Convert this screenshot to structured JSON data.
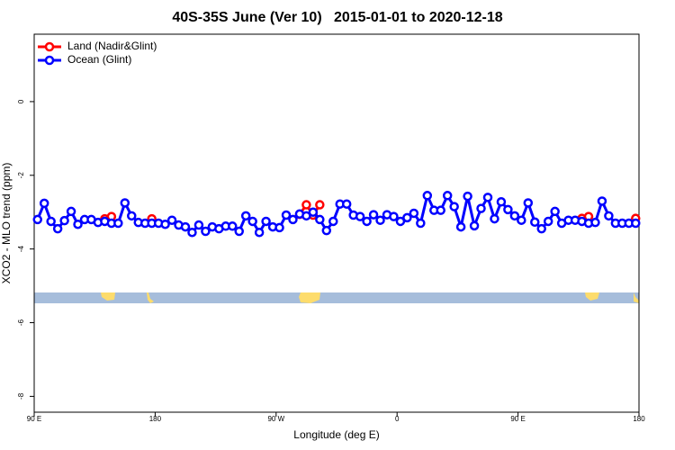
{
  "chart_data": {
    "type": "line",
    "title": "40S-35S June (Ver 10)   2015-01-01 to 2020-12-18",
    "x_label": "Longitude (deg E)",
    "y_label": "XCO2 - MLO trend (ppm)",
    "x": [
      92.5,
      97.5,
      102.5,
      107.5,
      112.5,
      117.5,
      122.5,
      127.5,
      132.5,
      137.5,
      142.5,
      147.5,
      152.5,
      157.5,
      162.5,
      167.5,
      172.5,
      177.5,
      182.5,
      187.5,
      192.5,
      197.5,
      202.5,
      207.5,
      212.5,
      217.5,
      222.5,
      227.5,
      232.5,
      237.5,
      242.5,
      247.5,
      252.5,
      257.5,
      262.5,
      267.5,
      272.5,
      277.5,
      282.5,
      287.5,
      292.5,
      297.5,
      302.5,
      307.5,
      312.5,
      317.5,
      322.5,
      327.5,
      332.5,
      337.5,
      342.5,
      347.5,
      352.5,
      357.5,
      362.5,
      367.5,
      372.5,
      377.5,
      382.5,
      387.5,
      392.5,
      397.5,
      402.5,
      407.5,
      412.5,
      417.5,
      422.5,
      427.5,
      432.5,
      437.5,
      442.5,
      447.5,
      452.5,
      457.5,
      462.5,
      467.5,
      472.5,
      477.5,
      482.5,
      487.5,
      492.5,
      497.5,
      502.5,
      507.5,
      512.5,
      517.5,
      522.5,
      527.5,
      532.5,
      537.5
    ],
    "series": [
      {
        "name": "Land (Nadir&Glint)",
        "color": "#ff0000",
        "values": [
          null,
          null,
          null,
          null,
          null,
          null,
          null,
          null,
          null,
          null,
          -3.18,
          -3.12,
          null,
          null,
          null,
          null,
          null,
          -3.18,
          null,
          null,
          null,
          null,
          null,
          null,
          null,
          null,
          null,
          null,
          null,
          null,
          null,
          null,
          null,
          null,
          null,
          null,
          null,
          null,
          null,
          -3.06,
          -2.8,
          -3.08,
          -2.8,
          null,
          null,
          null,
          null,
          null,
          null,
          null,
          null,
          null,
          null,
          null,
          null,
          null,
          null,
          null,
          null,
          null,
          null,
          null,
          null,
          null,
          null,
          null,
          null,
          null,
          null,
          null,
          null,
          null,
          null,
          null,
          null,
          null,
          null,
          null,
          null,
          null,
          null,
          -3.17,
          -3.12,
          null,
          null,
          null,
          null,
          null,
          null,
          -3.17
        ]
      },
      {
        "name": "Ocean (Glint)",
        "color": "#0000ff",
        "values": [
          -3.2,
          -2.76,
          -3.25,
          -3.45,
          -3.23,
          -2.98,
          -3.33,
          -3.2,
          -3.2,
          -3.28,
          -3.25,
          -3.3,
          -3.3,
          -2.75,
          -3.1,
          -3.28,
          -3.3,
          -3.3,
          -3.3,
          -3.33,
          -3.22,
          -3.35,
          -3.4,
          -3.55,
          -3.35,
          -3.52,
          -3.4,
          -3.45,
          -3.38,
          -3.38,
          -3.52,
          -3.1,
          -3.25,
          -3.55,
          -3.25,
          -3.4,
          -3.42,
          -3.08,
          -3.2,
          -3.05,
          -3.1,
          -3.0,
          -3.2,
          -3.5,
          -3.25,
          -2.78,
          -2.78,
          -3.08,
          -3.12,
          -3.25,
          -3.07,
          -3.22,
          -3.07,
          -3.12,
          -3.25,
          -3.15,
          -3.03,
          -3.3,
          -2.55,
          -2.95,
          -2.95,
          -2.55,
          -2.85,
          -3.4,
          -2.57,
          -3.37,
          -2.9,
          -2.6,
          -3.18,
          -2.72,
          -2.93,
          -3.1,
          -3.22,
          -2.75,
          -3.27,
          -3.45,
          -3.25,
          -2.98,
          -3.3,
          -3.22,
          -3.22,
          -3.25,
          -3.3,
          -3.28,
          -2.7,
          -3.1,
          -3.3,
          -3.3,
          -3.3,
          -3.3
        ]
      }
    ],
    "xlim": [
      90,
      540
    ],
    "xticks": [
      {
        "value": 90,
        "label": "90 E"
      },
      180,
      {
        "value": 270,
        "label": "90 W"
      },
      {
        "value": 360,
        "label": "0"
      },
      {
        "value": 450,
        "label": "90 E"
      },
      {
        "value": 540,
        "label": "180"
      }
    ],
    "ylim": [
      -8.43,
      1.83
    ],
    "yticks": [
      0,
      -2,
      -4,
      -6,
      -8
    ],
    "legend": "top-left"
  }
}
